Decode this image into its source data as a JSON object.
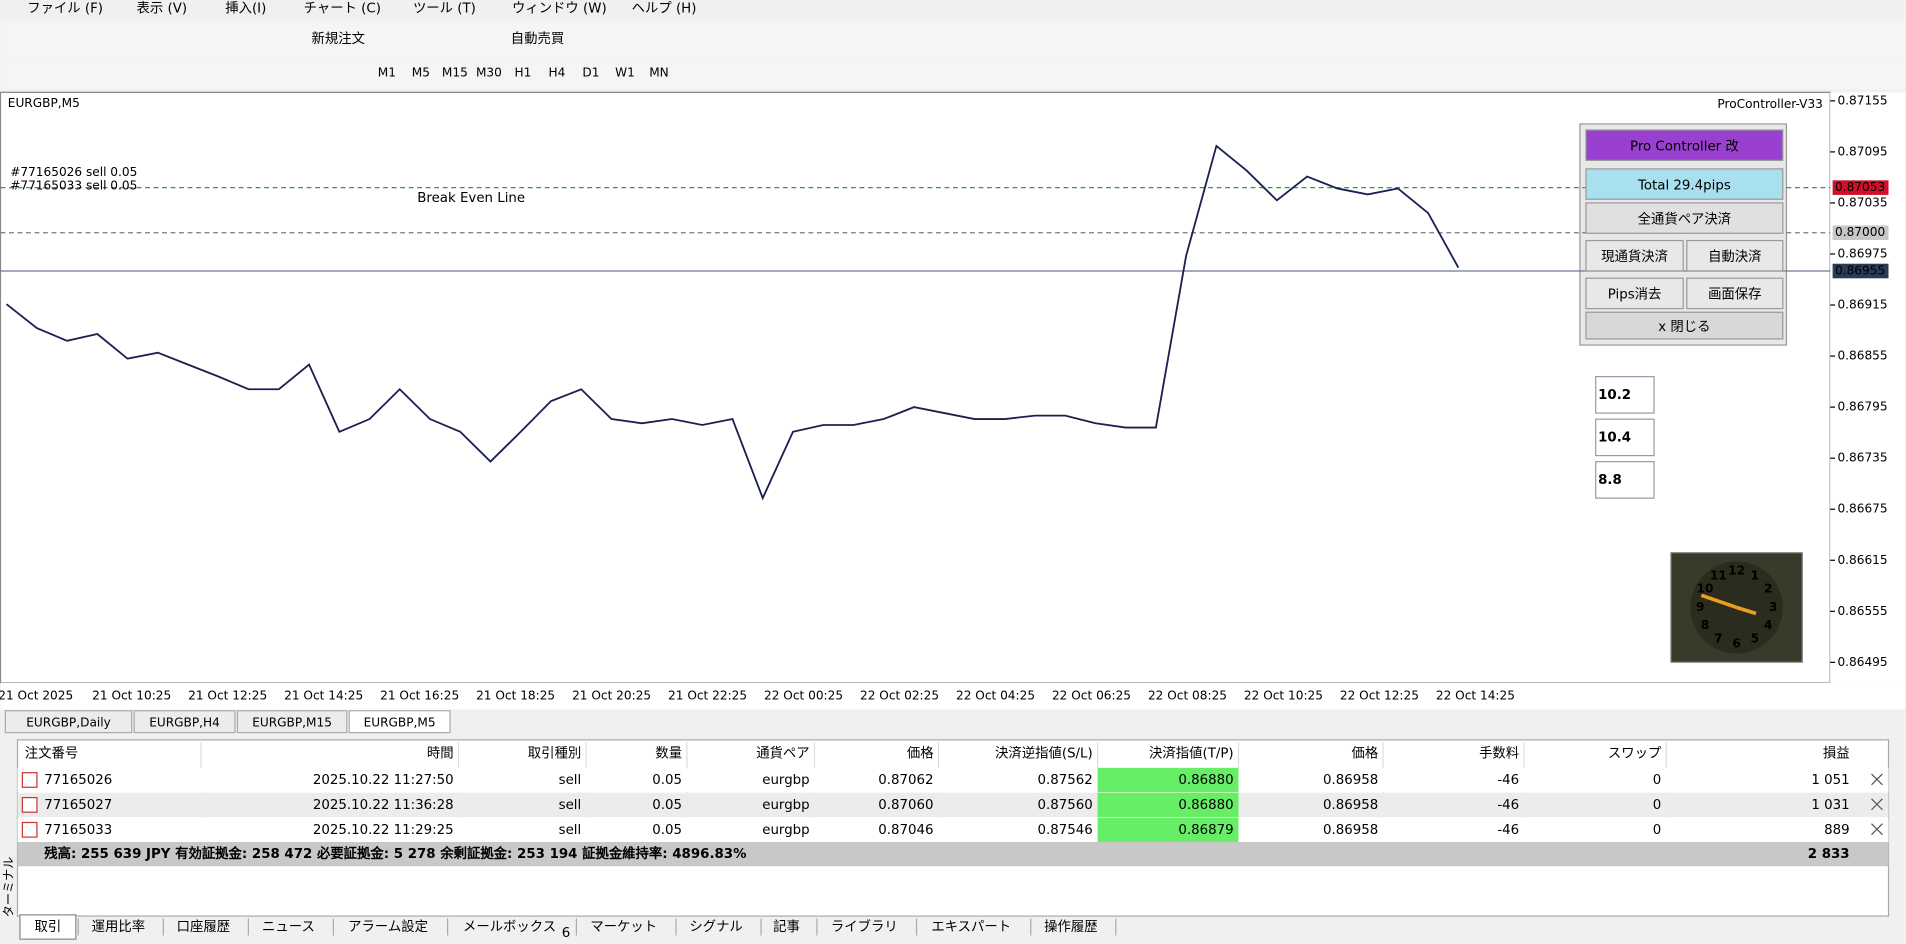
{
  "menu": [
    "ファイル (F)",
    "表示 (V)",
    "挿入(I)",
    "チャート (C)",
    "ツール (T)",
    "ウィンドウ (W)",
    "ヘルプ (H)"
  ],
  "toolbar": {
    "new_order": "新規注文",
    "auto_trade": "自動売買",
    "timeframes": [
      "M1",
      "M5",
      "M15",
      "M30",
      "H1",
      "H4",
      "D1",
      "W1",
      "MN"
    ]
  },
  "chart": {
    "symbol": "EURGBP,M5",
    "indicator": "ProController-V33",
    "ylim": [
      0.86471,
      0.87165
    ],
    "yticks": [
      0.87155,
      0.87095,
      0.87035,
      0.86975,
      0.86915,
      0.86855,
      0.86795,
      0.86735,
      0.86675,
      0.86615,
      0.86555,
      0.86495
    ],
    "price_markers": [
      0.87053,
      {
        "value": 0.87,
        "label": "0.87000"
      },
      0.86955
    ],
    "time_labels": [
      "21 Oct 2025",
      "21 Oct 10:25",
      "21 Oct 12:25",
      "21 Oct 14:25",
      "21 Oct 16:25",
      "21 Oct 18:25",
      "21 Oct 20:25",
      "21 Oct 22:25",
      "22 Oct 00:25",
      "22 Oct 02:25",
      "22 Oct 04:25",
      "22 Oct 06:25",
      "22 Oct 08:25",
      "22 Oct 10:25",
      "22 Oct 12:25",
      "22 Oct 14:25"
    ],
    "closes": [
      0.86916,
      0.86888,
      0.86873,
      0.86881,
      0.86852,
      0.86859,
      0.86845,
      0.86831,
      0.86816,
      0.86816,
      0.86845,
      0.86766,
      0.86781,
      0.86816,
      0.86781,
      0.86766,
      0.86731,
      0.86766,
      0.86802,
      0.86816,
      0.86781,
      0.86776,
      0.86781,
      0.86774,
      0.86781,
      0.86688,
      0.86766,
      0.86774,
      0.86774,
      0.86781,
      0.86795,
      0.86788,
      0.86781,
      0.86781,
      0.86785,
      0.86785,
      0.86776,
      0.86771,
      0.86771,
      0.86973,
      0.87102,
      0.87073,
      0.87038,
      0.87066,
      0.87052,
      0.87045,
      0.87052,
      0.87023,
      0.86959
    ],
    "order_labels": [
      "#77165026 sell 0.05",
      "#77165033 sell 0.05"
    ],
    "break_even_label": "Break Even Line"
  },
  "panel": {
    "title": "Pro Controller 改",
    "total": "Total   29.4pips",
    "close_all": "全通貨ペア決済",
    "close_current": "現通貨決済",
    "auto_close": "自動決済",
    "clear_pips": "Pips消去",
    "save_screen": "画面保存",
    "close": "x 閉じる",
    "pips_boxes": [
      "10.2",
      "10.4",
      "8.8"
    ]
  },
  "clock": {
    "numerals": [
      "12",
      "1",
      "2",
      "3",
      "4",
      "5",
      "6",
      "7",
      "8",
      "9",
      "10",
      "11"
    ]
  },
  "chart_tabs": [
    "EURGBP,Daily",
    "EURGBP,H4",
    "EURGBP,M15",
    "EURGBP,M5"
  ],
  "table": {
    "headers": [
      "注文番号",
      "時間",
      "取引種別",
      "数量",
      "通貨ペア",
      "価格",
      "決済逆指値(S/L)",
      "決済指値(T/P)",
      "価格",
      "手数料",
      "スワップ",
      "損益"
    ],
    "rows": [
      [
        "77165026",
        "2025.10.22 11:27:50",
        "sell",
        "0.05",
        "eurgbp",
        "0.87062",
        "0.87562",
        "0.86880",
        "0.86958",
        "-46",
        "0",
        "1 051"
      ],
      [
        "77165027",
        "2025.10.22 11:36:28",
        "sell",
        "0.05",
        "eurgbp",
        "0.87060",
        "0.87560",
        "0.86880",
        "0.86958",
        "-46",
        "0",
        "1 031"
      ],
      [
        "77165033",
        "2025.10.22 11:29:25",
        "sell",
        "0.05",
        "eurgbp",
        "0.87046",
        "0.87546",
        "0.86879",
        "0.86958",
        "-46",
        "0",
        "889"
      ]
    ],
    "summary": "残高: 255 639 JPY  有効証拠金: 258 472  必要証拠金: 5 278  余剰証拠金: 253 194  証拠金維持率: 4896.83%",
    "summary_profit": "2 833"
  },
  "terminal_label": "ターミナル",
  "bottom_tabs": [
    "取引",
    "運用比率",
    "口座履歴",
    "ニュース",
    "アラーム設定",
    "メールボックス",
    "マーケット",
    "シグナル",
    "記事",
    "ライブラリ",
    "エキスパート",
    "操作履歴"
  ],
  "mailbox_count": "6"
}
